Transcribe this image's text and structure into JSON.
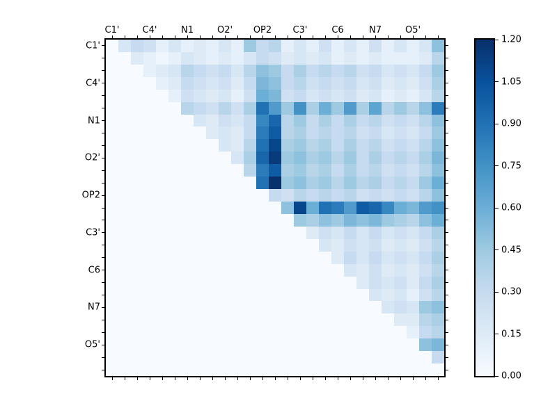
{
  "chart_data": {
    "type": "heatmap",
    "title": "",
    "xlabel": "",
    "ylabel": "",
    "colormap": "Blues",
    "vmin": 0.0,
    "vmax": 1.2,
    "n": 27,
    "cells_per_group": 3,
    "group_labels": [
      "C1'",
      "C4'",
      "N1",
      "O2'",
      "OP2",
      "C3'",
      "C6",
      "N7",
      "O5'"
    ],
    "x_axis_side": "top",
    "y_axis_side": "left",
    "legend_position": "right-colorbar",
    "grid": false,
    "colorbar_ticks": [
      {
        "value": 0.0,
        "label": "0.00"
      },
      {
        "value": 0.15,
        "label": "0.15"
      },
      {
        "value": 0.3,
        "label": "0.30"
      },
      {
        "value": 0.45,
        "label": "0.45"
      },
      {
        "value": 0.6,
        "label": "0.60"
      },
      {
        "value": 0.75,
        "label": "0.75"
      },
      {
        "value": 0.9,
        "label": "0.90"
      },
      {
        "value": 1.05,
        "label": "1.05"
      },
      {
        "value": 1.2,
        "label": "1.20"
      }
    ],
    "colormap_stops": [
      [
        0.0,
        "#f7fbff"
      ],
      [
        0.125,
        "#deebf7"
      ],
      [
        0.25,
        "#c6dbef"
      ],
      [
        0.375,
        "#9ecae1"
      ],
      [
        0.5,
        "#6baed6"
      ],
      [
        0.625,
        "#4292c6"
      ],
      [
        0.75,
        "#2171b5"
      ],
      [
        0.875,
        "#08519c"
      ],
      [
        1.0,
        "#08306b"
      ]
    ],
    "matrix": [
      [
        0,
        0.2,
        0.3,
        0.25,
        0.1,
        0.2,
        0.1,
        0.15,
        0.1,
        0.2,
        0.1,
        0.45,
        0.3,
        0.35,
        0.1,
        0.2,
        0.1,
        0.25,
        0.1,
        0.2,
        0.1,
        0.25,
        0.1,
        0.2,
        0.1,
        0.2,
        0.5
      ],
      [
        0,
        0,
        0.15,
        0.1,
        0.05,
        0.1,
        0.2,
        0.15,
        0.1,
        0.15,
        0.1,
        0.2,
        0.3,
        0.25,
        0.15,
        0.2,
        0.15,
        0.2,
        0.1,
        0.15,
        0.1,
        0.15,
        0.1,
        0.1,
        0.1,
        0.15,
        0.35
      ],
      [
        0,
        0,
        0,
        0.1,
        0.15,
        0.2,
        0.35,
        0.3,
        0.25,
        0.3,
        0.2,
        0.35,
        0.5,
        0.45,
        0.3,
        0.4,
        0.3,
        0.35,
        0.3,
        0.35,
        0.25,
        0.3,
        0.2,
        0.25,
        0.2,
        0.3,
        0.45
      ],
      [
        0,
        0,
        0,
        0,
        0.1,
        0.15,
        0.3,
        0.25,
        0.2,
        0.25,
        0.15,
        0.3,
        0.55,
        0.5,
        0.3,
        0.35,
        0.25,
        0.3,
        0.25,
        0.3,
        0.2,
        0.25,
        0.15,
        0.2,
        0.15,
        0.25,
        0.4
      ],
      [
        0,
        0,
        0,
        0,
        0,
        0.1,
        0.25,
        0.2,
        0.15,
        0.2,
        0.1,
        0.25,
        0.6,
        0.55,
        0.25,
        0.3,
        0.2,
        0.25,
        0.2,
        0.25,
        0.15,
        0.2,
        0.1,
        0.15,
        0.1,
        0.2,
        0.35
      ],
      [
        0,
        0,
        0,
        0,
        0,
        0,
        0.35,
        0.3,
        0.25,
        0.35,
        0.25,
        0.4,
        0.9,
        0.7,
        0.45,
        0.75,
        0.4,
        0.6,
        0.45,
        0.7,
        0.4,
        0.65,
        0.35,
        0.45,
        0.35,
        0.5,
        0.85
      ],
      [
        0,
        0,
        0,
        0,
        0,
        0,
        0,
        0.2,
        0.15,
        0.25,
        0.2,
        0.3,
        0.8,
        0.95,
        0.35,
        0.45,
        0.3,
        0.4,
        0.3,
        0.4,
        0.3,
        0.35,
        0.25,
        0.3,
        0.25,
        0.35,
        0.5
      ],
      [
        0,
        0,
        0,
        0,
        0,
        0,
        0,
        0,
        0.15,
        0.2,
        0.15,
        0.3,
        0.85,
        1.0,
        0.35,
        0.4,
        0.3,
        0.35,
        0.3,
        0.35,
        0.25,
        0.3,
        0.2,
        0.25,
        0.2,
        0.3,
        0.45
      ],
      [
        0,
        0,
        0,
        0,
        0,
        0,
        0,
        0,
        0,
        0.2,
        0.15,
        0.35,
        0.9,
        1.1,
        0.4,
        0.45,
        0.35,
        0.4,
        0.3,
        0.4,
        0.3,
        0.35,
        0.25,
        0.3,
        0.25,
        0.35,
        0.5
      ],
      [
        0,
        0,
        0,
        0,
        0,
        0,
        0,
        0,
        0,
        0,
        0.2,
        0.4,
        0.95,
        1.15,
        0.45,
        0.5,
        0.4,
        0.45,
        0.35,
        0.45,
        0.3,
        0.4,
        0.3,
        0.35,
        0.3,
        0.4,
        0.55
      ],
      [
        0,
        0,
        0,
        0,
        0,
        0,
        0,
        0,
        0,
        0,
        0,
        0.35,
        0.85,
        1.0,
        0.4,
        0.45,
        0.35,
        0.4,
        0.3,
        0.4,
        0.3,
        0.35,
        0.25,
        0.3,
        0.25,
        0.35,
        0.5
      ],
      [
        0,
        0,
        0,
        0,
        0,
        0,
        0,
        0,
        0,
        0,
        0,
        0,
        0.9,
        1.2,
        0.45,
        0.5,
        0.4,
        0.45,
        0.35,
        0.45,
        0.35,
        0.4,
        0.3,
        0.35,
        0.3,
        0.45,
        0.6
      ],
      [
        0,
        0,
        0,
        0,
        0,
        0,
        0,
        0,
        0,
        0,
        0,
        0,
        0,
        0.3,
        0.25,
        0.35,
        0.3,
        0.35,
        0.3,
        0.35,
        0.25,
        0.3,
        0.25,
        0.3,
        0.25,
        0.35,
        0.5
      ],
      [
        0,
        0,
        0,
        0,
        0,
        0,
        0,
        0,
        0,
        0,
        0,
        0,
        0,
        0,
        0.5,
        1.1,
        0.6,
        0.9,
        0.85,
        0.7,
        1.0,
        0.95,
        0.8,
        0.6,
        0.55,
        0.7,
        0.75
      ],
      [
        0,
        0,
        0,
        0,
        0,
        0,
        0,
        0,
        0,
        0,
        0,
        0,
        0,
        0,
        0,
        0.45,
        0.4,
        0.5,
        0.45,
        0.55,
        0.5,
        0.55,
        0.45,
        0.4,
        0.35,
        0.5,
        0.6
      ],
      [
        0,
        0,
        0,
        0,
        0,
        0,
        0,
        0,
        0,
        0,
        0,
        0,
        0,
        0,
        0,
        0,
        0.15,
        0.25,
        0.2,
        0.3,
        0.2,
        0.3,
        0.2,
        0.25,
        0.2,
        0.3,
        0.4
      ],
      [
        0,
        0,
        0,
        0,
        0,
        0,
        0,
        0,
        0,
        0,
        0,
        0,
        0,
        0,
        0,
        0,
        0,
        0.2,
        0.15,
        0.25,
        0.2,
        0.25,
        0.15,
        0.2,
        0.15,
        0.25,
        0.35
      ],
      [
        0,
        0,
        0,
        0,
        0,
        0,
        0,
        0,
        0,
        0,
        0,
        0,
        0,
        0,
        0,
        0,
        0,
        0,
        0.15,
        0.3,
        0.2,
        0.3,
        0.2,
        0.25,
        0.2,
        0.3,
        0.4
      ],
      [
        0,
        0,
        0,
        0,
        0,
        0,
        0,
        0,
        0,
        0,
        0,
        0,
        0,
        0,
        0,
        0,
        0,
        0,
        0,
        0.2,
        0.15,
        0.25,
        0.15,
        0.2,
        0.15,
        0.25,
        0.35
      ],
      [
        0,
        0,
        0,
        0,
        0,
        0,
        0,
        0,
        0,
        0,
        0,
        0,
        0,
        0,
        0,
        0,
        0,
        0,
        0,
        0,
        0.15,
        0.25,
        0.2,
        0.25,
        0.15,
        0.3,
        0.4
      ],
      [
        0,
        0,
        0,
        0,
        0,
        0,
        0,
        0,
        0,
        0,
        0,
        0,
        0,
        0,
        0,
        0,
        0,
        0,
        0,
        0,
        0,
        0.2,
        0.15,
        0.2,
        0.1,
        0.25,
        0.35
      ],
      [
        0,
        0,
        0,
        0,
        0,
        0,
        0,
        0,
        0,
        0,
        0,
        0,
        0,
        0,
        0,
        0,
        0,
        0,
        0,
        0,
        0,
        0,
        0.2,
        0.25,
        0.2,
        0.45,
        0.5
      ],
      [
        0,
        0,
        0,
        0,
        0,
        0,
        0,
        0,
        0,
        0,
        0,
        0,
        0,
        0,
        0,
        0,
        0,
        0,
        0,
        0,
        0,
        0,
        0,
        0.15,
        0.15,
        0.35,
        0.4
      ],
      [
        0,
        0,
        0,
        0,
        0,
        0,
        0,
        0,
        0,
        0,
        0,
        0,
        0,
        0,
        0,
        0,
        0,
        0,
        0,
        0,
        0,
        0,
        0,
        0,
        0.1,
        0.3,
        0.35
      ],
      [
        0,
        0,
        0,
        0,
        0,
        0,
        0,
        0,
        0,
        0,
        0,
        0,
        0,
        0,
        0,
        0,
        0,
        0,
        0,
        0,
        0,
        0,
        0,
        0,
        0,
        0.5,
        0.55
      ],
      [
        0,
        0,
        0,
        0,
        0,
        0,
        0,
        0,
        0,
        0,
        0,
        0,
        0,
        0,
        0,
        0,
        0,
        0,
        0,
        0,
        0,
        0,
        0,
        0,
        0,
        0,
        0.3
      ],
      [
        0,
        0,
        0,
        0,
        0,
        0,
        0,
        0,
        0,
        0,
        0,
        0,
        0,
        0,
        0,
        0,
        0,
        0,
        0,
        0,
        0,
        0,
        0,
        0,
        0,
        0,
        0
      ]
    ]
  }
}
